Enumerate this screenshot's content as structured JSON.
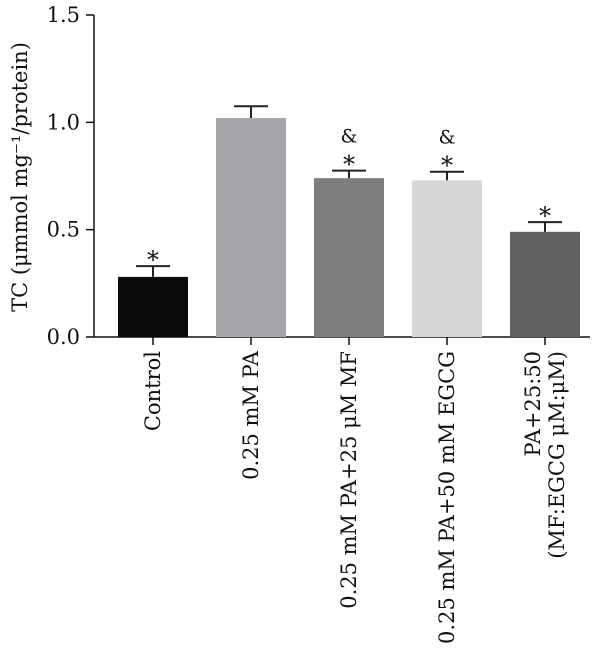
{
  "chart_data": {
    "type": "bar",
    "ylabel": "TC (μmmol mg⁻¹/protein)",
    "ylim": [
      0,
      1.5
    ],
    "yticks": [
      {
        "value": 0.0,
        "label": "0.0"
      },
      {
        "value": 0.5,
        "label": "0.5"
      },
      {
        "value": 1.0,
        "label": "1.0"
      },
      {
        "value": 1.5,
        "label": "1.5"
      }
    ],
    "grid": false,
    "legend": "none",
    "categories": [
      {
        "lines": [
          "Control"
        ]
      },
      {
        "lines": [
          "0.25 mM PA"
        ]
      },
      {
        "lines": [
          "0.25 mM PA+25 μM MF"
        ]
      },
      {
        "lines": [
          "0.25 mM PA+50 mM EGCG"
        ]
      },
      {
        "lines": [
          "PA+25:50",
          "(MF:EGCG μM:μM)"
        ]
      }
    ],
    "values": [
      0.28,
      1.02,
      0.74,
      0.73,
      0.49
    ],
    "errors": [
      0.05,
      0.055,
      0.035,
      0.04,
      0.045
    ],
    "colors": [
      "#0b0b0b",
      "#a4a5a9",
      "#7d7e80",
      "#d5d6d8",
      "#606062"
    ],
    "annotations": [
      [
        "*"
      ],
      [],
      [
        "&",
        "*"
      ],
      [
        "&",
        "*"
      ],
      [
        "*"
      ]
    ]
  }
}
